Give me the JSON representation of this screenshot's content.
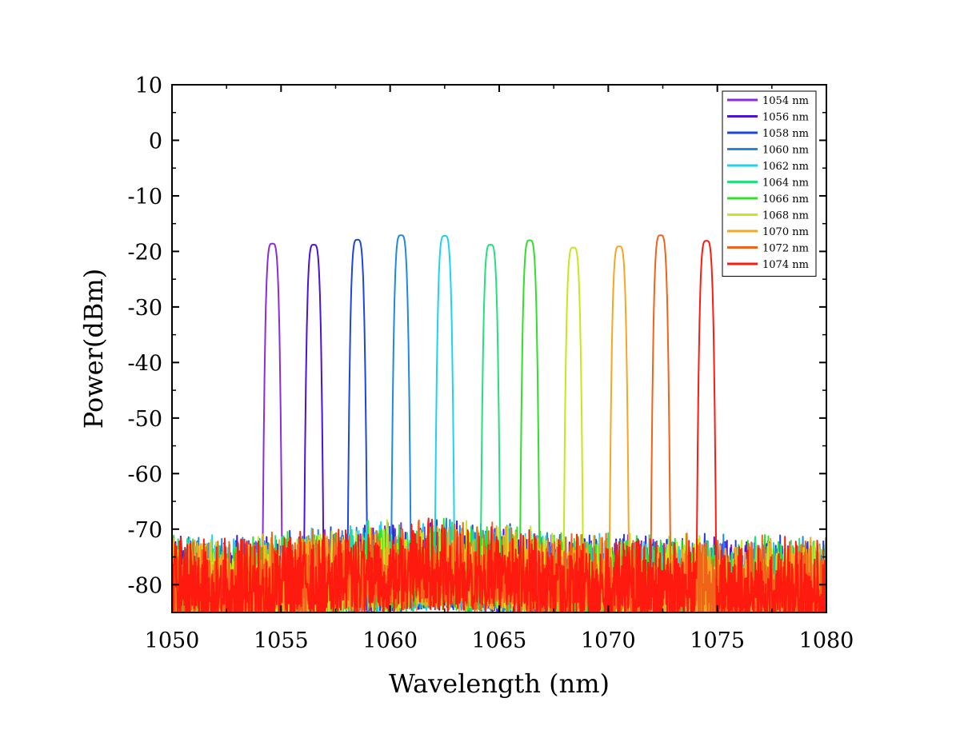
{
  "chart_data": {
    "type": "line",
    "title": "",
    "xlabel": "Wavelength (nm)",
    "ylabel": "Power(dBm)",
    "xlim": [
      1050,
      1080
    ],
    "ylim": [
      -85,
      10
    ],
    "x_ticks": [
      1050,
      1055,
      1060,
      1065,
      1070,
      1075,
      1080
    ],
    "x_tick_labels": [
      "1050",
      "1055",
      "1060",
      "1065",
      "1070",
      "1075",
      "1080"
    ],
    "y_ticks": [
      10,
      0,
      -10,
      -20,
      -30,
      -40,
      -50,
      -60,
      -70,
      -80
    ],
    "y_tick_labels": [
      "10",
      "0",
      "-10",
      "-20",
      "-30",
      "-40",
      "-50",
      "-60",
      "-70",
      "-80"
    ],
    "grid": false,
    "legend_position": "top-right",
    "noise_floor_dBm": -72,
    "series": [
      {
        "name": "1054 nm",
        "peak_wavelength": 1054.6,
        "peak_power": -18.6,
        "color": "#8a2be2"
      },
      {
        "name": "1056 nm",
        "peak_wavelength": 1056.5,
        "peak_power": -18.8,
        "color": "#4b12d8"
      },
      {
        "name": "1058 nm",
        "peak_wavelength": 1058.5,
        "peak_power": -17.9,
        "color": "#1f45e0"
      },
      {
        "name": "1060 nm",
        "peak_wavelength": 1060.5,
        "peak_power": -17.1,
        "color": "#1e88e5"
      },
      {
        "name": "1062 nm",
        "peak_wavelength": 1062.5,
        "peak_power": -17.2,
        "color": "#1ed2f0"
      },
      {
        "name": "1064 nm",
        "peak_wavelength": 1064.6,
        "peak_power": -18.8,
        "color": "#22e07a"
      },
      {
        "name": "1066 nm",
        "peak_wavelength": 1066.4,
        "peak_power": -18.0,
        "color": "#2ee02a"
      },
      {
        "name": "1068 nm",
        "peak_wavelength": 1068.4,
        "peak_power": -19.3,
        "color": "#c6e81a"
      },
      {
        "name": "1070 nm",
        "peak_wavelength": 1070.5,
        "peak_power": -19.1,
        "color": "#f5a623"
      },
      {
        "name": "1072 nm",
        "peak_wavelength": 1072.4,
        "peak_power": -17.1,
        "color": "#f0641a"
      },
      {
        "name": "1074 nm",
        "peak_wavelength": 1074.5,
        "peak_power": -18.1,
        "color": "#ff1a10"
      }
    ]
  }
}
